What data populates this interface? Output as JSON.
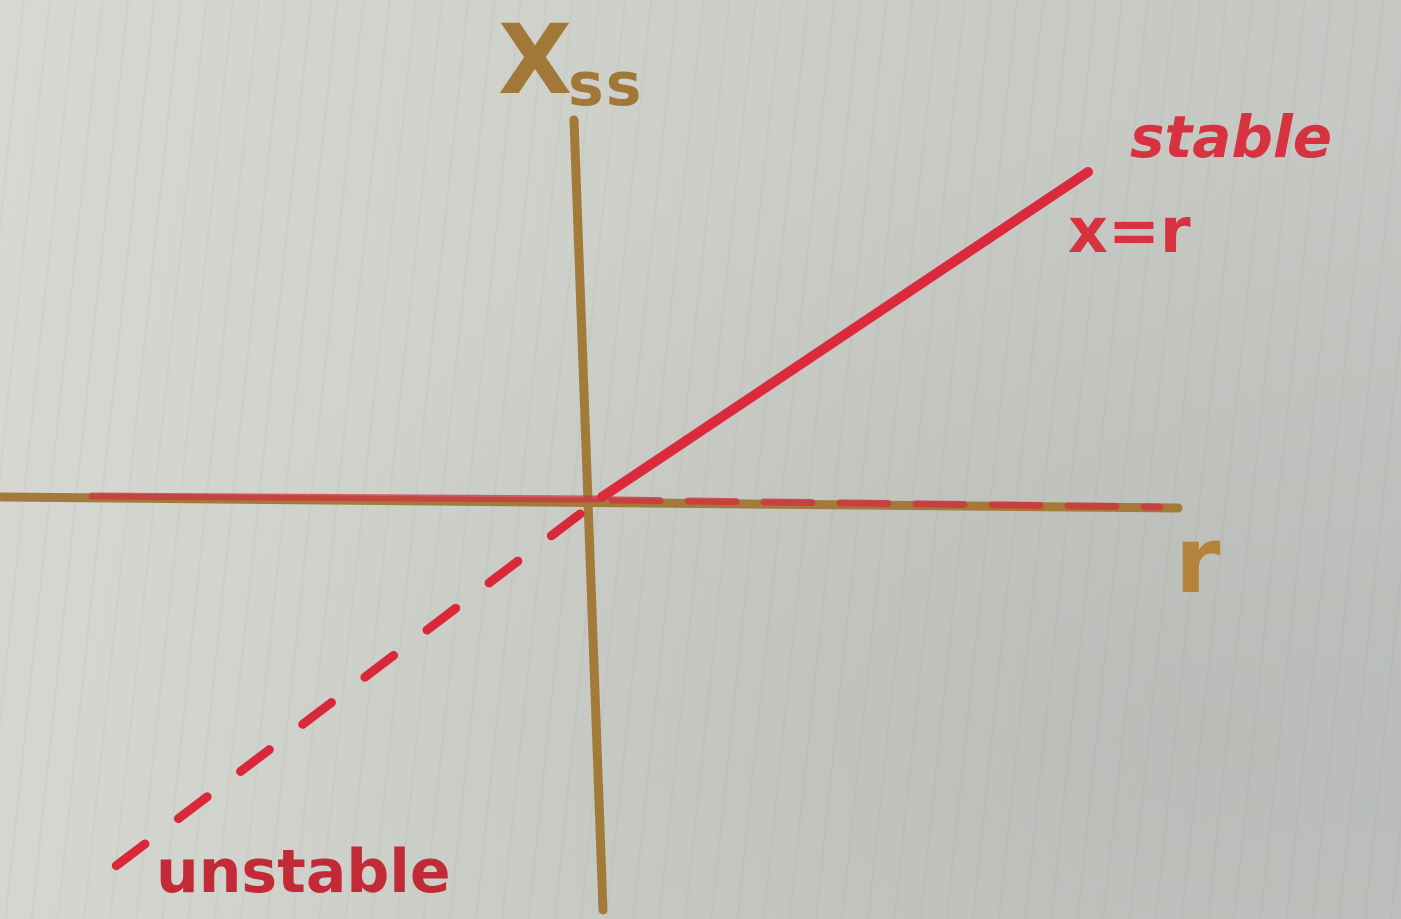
{
  "diagram": {
    "y_axis_label": "X",
    "y_axis_subscript": "ss",
    "x_axis_label": "r",
    "stable_label": "stable",
    "curve_label": "x=r",
    "unstable_label": "unstable"
  },
  "colors": {
    "axis": "#a17838",
    "stable_curve": "#d9283a",
    "unstable_curve": "#d9283a"
  }
}
